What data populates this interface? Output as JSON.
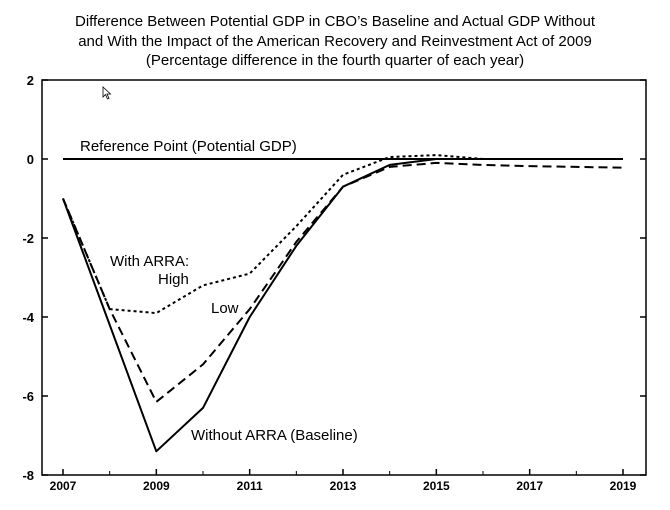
{
  "chart_data": {
    "type": "line",
    "title_lines": [
      "Difference Between Potential GDP in CBO’s Baseline and Actual GDP Without",
      "and With the Impact of the American Recovery and Reinvestment Act of 2009",
      "(Percentage difference in the fourth quarter of each year)"
    ],
    "xlabel": "",
    "ylabel": "",
    "xlim": [
      2007,
      2019
    ],
    "ylim": [
      -8,
      2
    ],
    "x_ticks": [
      2007,
      2009,
      2011,
      2013,
      2015,
      2017,
      2019
    ],
    "y_ticks": [
      2,
      0,
      -2,
      -4,
      -6,
      -8
    ],
    "grid": false,
    "reference_line": {
      "y": 0,
      "label": "Reference Point (Potential GDP)"
    },
    "series": [
      {
        "label_lines": [
          "Without ARRA (Baseline)"
        ],
        "style": "solid",
        "x": [
          2007,
          2008,
          2009,
          2010,
          2011,
          2012,
          2013,
          2014,
          2015,
          2016
        ],
        "y": [
          -1.0,
          -4.2,
          -7.4,
          -6.3,
          -4.0,
          -2.2,
          -0.7,
          -0.15,
          0.0,
          0.0
        ]
      },
      {
        "label_lines": [
          "Low"
        ],
        "style": "dashed",
        "x": [
          2007,
          2008,
          2009,
          2010,
          2011,
          2012,
          2013,
          2014,
          2015,
          2016,
          2017,
          2018,
          2019
        ],
        "y": [
          -1.0,
          -3.8,
          -6.15,
          -5.2,
          -3.8,
          -2.1,
          -0.7,
          -0.2,
          -0.1,
          -0.15,
          -0.18,
          -0.2,
          -0.22
        ]
      },
      {
        "label_lines": [
          "With ARRA:",
          "High"
        ],
        "style": "dotted",
        "x": [
          2007,
          2008,
          2009,
          2010,
          2011,
          2012,
          2013,
          2014,
          2015,
          2016,
          2017
        ],
        "y": [
          -1.0,
          -3.8,
          -3.9,
          -3.2,
          -2.9,
          -1.7,
          -0.4,
          0.05,
          0.1,
          0.0,
          0.0
        ]
      }
    ],
    "colors": {
      "line": "#000000",
      "background": "#ffffff"
    }
  }
}
